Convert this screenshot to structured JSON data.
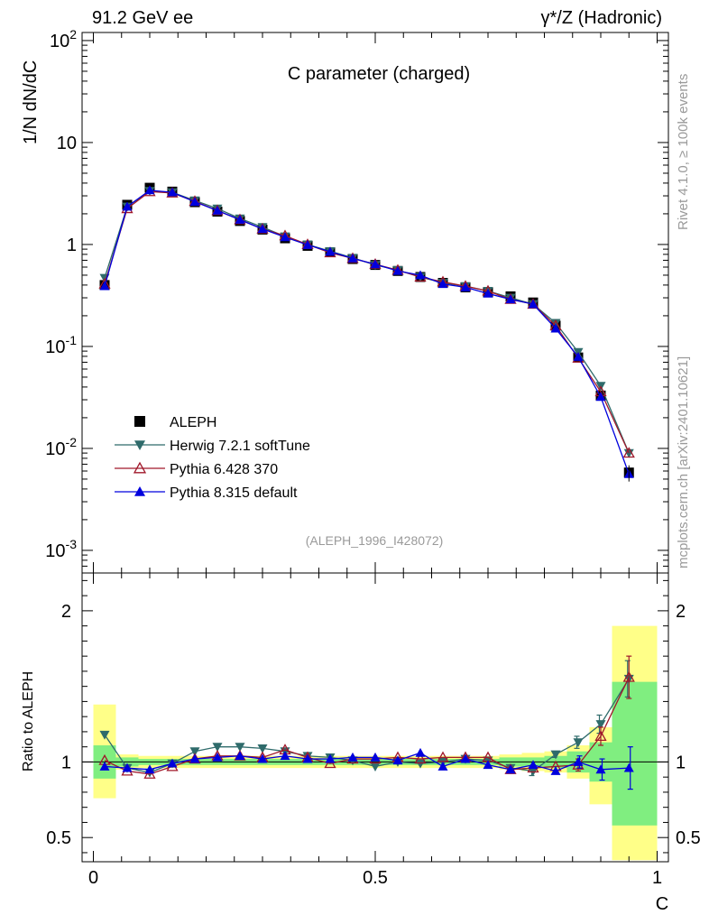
{
  "header": {
    "left": "91.2 GeV ee",
    "right": "γ*/Z (Hadronic)"
  },
  "side_labels": {
    "rivet": "Rivet 4.1.0, ≥ 100k events",
    "mcplots": "mcplots.cern.ch [arXiv:2401.10621]"
  },
  "colors": {
    "aleph": "#000000",
    "herwig": "#2f6b6b",
    "pythia6": "#a0182a",
    "pythia8": "#0000dd",
    "band_inner": "#80ee80",
    "band_outer": "#ffff88"
  },
  "chart_data": [
    {
      "type": "line",
      "title": "C parameter (charged)",
      "ylabel": "1/N  dN/dC",
      "xlabel": "C",
      "yscale": "log",
      "ylim": [
        0.0006,
        120
      ],
      "xlim": [
        -0.02,
        1.02
      ],
      "ytick_labels": [
        "10^-3",
        "10^-2",
        "10^-1",
        "1",
        "10",
        "10^2"
      ],
      "annotation": "(ALEPH_1996_I428072)",
      "legend_position": "left-middle",
      "x": [
        0.02,
        0.06,
        0.1,
        0.14,
        0.18,
        0.22,
        0.26,
        0.3,
        0.34,
        0.38,
        0.42,
        0.46,
        0.5,
        0.54,
        0.58,
        0.62,
        0.66,
        0.7,
        0.74,
        0.78,
        0.82,
        0.86,
        0.9,
        0.95
      ],
      "series": [
        {
          "name": "ALEPH",
          "marker": "square",
          "color_key": "aleph",
          "values": [
            0.4,
            2.45,
            3.6,
            3.3,
            2.6,
            2.1,
            1.7,
            1.4,
            1.15,
            0.97,
            0.84,
            0.72,
            0.63,
            0.55,
            0.48,
            0.42,
            0.38,
            0.34,
            0.31,
            0.27,
            0.16,
            0.078,
            0.033,
            0.0058
          ]
        },
        {
          "name": "Herwig 7.2.1 softTune",
          "marker": "triangle-down",
          "color_key": "herwig",
          "values": [
            0.47,
            2.35,
            3.35,
            3.25,
            2.7,
            2.25,
            1.8,
            1.48,
            1.2,
            1.0,
            0.86,
            0.74,
            0.63,
            0.56,
            0.48,
            0.42,
            0.39,
            0.35,
            0.3,
            0.26,
            0.17,
            0.088,
            0.041,
            0.009
          ]
        },
        {
          "name": "Pythia 6.428 370",
          "marker": "triangle-up-open",
          "color_key": "pythia6",
          "values": [
            0.41,
            2.25,
            3.3,
            3.2,
            2.65,
            2.15,
            1.75,
            1.42,
            1.22,
            1.0,
            0.83,
            0.73,
            0.64,
            0.56,
            0.48,
            0.43,
            0.39,
            0.35,
            0.29,
            0.26,
            0.16,
            0.077,
            0.036,
            0.009
          ]
        },
        {
          "name": "Pythia 8.315 default",
          "marker": "triangle-up",
          "color_key": "pythia8",
          "values": [
            0.39,
            2.35,
            3.4,
            3.25,
            2.62,
            2.15,
            1.75,
            1.42,
            1.18,
            0.99,
            0.85,
            0.73,
            0.64,
            0.55,
            0.5,
            0.41,
            0.38,
            0.33,
            0.29,
            0.26,
            0.15,
            0.079,
            0.032,
            0.0056
          ]
        }
      ]
    },
    {
      "type": "line",
      "title": "",
      "ylabel": "Ratio to ALEPH",
      "xlabel": "C",
      "ylim": [
        0.34,
        2.25
      ],
      "xlim": [
        -0.02,
        1.02
      ],
      "yticks": [
        0.5,
        1,
        2
      ],
      "ytick_labels": [
        "0.5",
        "1",
        "2"
      ],
      "xticks": [
        0,
        0.5,
        1
      ],
      "xtick_labels": [
        "0",
        "0.5",
        "1"
      ],
      "bands": {
        "edges": [
          0.0,
          0.04,
          0.08,
          0.12,
          0.16,
          0.2,
          0.24,
          0.28,
          0.32,
          0.36,
          0.4,
          0.44,
          0.48,
          0.52,
          0.56,
          0.6,
          0.64,
          0.68,
          0.72,
          0.76,
          0.8,
          0.84,
          0.88,
          0.92,
          1.0
        ],
        "inner": [
          [
            0.89,
            1.11
          ],
          [
            0.97,
            1.03
          ],
          [
            0.98,
            1.02
          ],
          [
            0.98,
            1.02
          ],
          [
            0.98,
            1.02
          ],
          [
            0.98,
            1.02
          ],
          [
            0.98,
            1.02
          ],
          [
            0.98,
            1.02
          ],
          [
            0.98,
            1.02
          ],
          [
            0.98,
            1.02
          ],
          [
            0.98,
            1.02
          ],
          [
            0.98,
            1.02
          ],
          [
            0.98,
            1.02
          ],
          [
            0.98,
            1.02
          ],
          [
            0.98,
            1.02
          ],
          [
            0.98,
            1.02
          ],
          [
            0.98,
            1.02
          ],
          [
            0.98,
            1.02
          ],
          [
            0.97,
            1.03
          ],
          [
            0.97,
            1.03
          ],
          [
            0.96,
            1.04
          ],
          [
            0.93,
            1.07
          ],
          [
            0.87,
            1.13
          ],
          [
            0.58,
            1.53
          ]
        ],
        "outer": [
          [
            0.76,
            1.38
          ],
          [
            0.95,
            1.05
          ],
          [
            0.96,
            1.04
          ],
          [
            0.96,
            1.04
          ],
          [
            0.96,
            1.04
          ],
          [
            0.96,
            1.04
          ],
          [
            0.96,
            1.04
          ],
          [
            0.96,
            1.04
          ],
          [
            0.96,
            1.04
          ],
          [
            0.96,
            1.04
          ],
          [
            0.96,
            1.04
          ],
          [
            0.96,
            1.04
          ],
          [
            0.96,
            1.04
          ],
          [
            0.96,
            1.04
          ],
          [
            0.96,
            1.04
          ],
          [
            0.96,
            1.04
          ],
          [
            0.96,
            1.04
          ],
          [
            0.96,
            1.04
          ],
          [
            0.95,
            1.05
          ],
          [
            0.94,
            1.06
          ],
          [
            0.93,
            1.07
          ],
          [
            0.89,
            1.11
          ],
          [
            0.72,
            1.23
          ],
          [
            0.35,
            1.9
          ]
        ]
      },
      "x": [
        0.02,
        0.06,
        0.1,
        0.14,
        0.18,
        0.22,
        0.26,
        0.3,
        0.34,
        0.38,
        0.42,
        0.46,
        0.5,
        0.54,
        0.58,
        0.62,
        0.66,
        0.7,
        0.74,
        0.78,
        0.82,
        0.86,
        0.9,
        0.95
      ],
      "series": [
        {
          "name": "Herwig 7.2.1 softTune",
          "marker": "triangle-down",
          "color_key": "herwig",
          "values": [
            1.18,
            0.96,
            0.93,
            0.99,
            1.07,
            1.1,
            1.1,
            1.09,
            1.07,
            1.04,
            1.03,
            1.01,
            0.97,
            1.0,
            0.99,
            1.0,
            1.02,
            1.01,
            0.96,
            0.94,
            1.05,
            1.13,
            1.25,
            1.55
          ],
          "errors": [
            0,
            0,
            0,
            0,
            0,
            0,
            0,
            0,
            0,
            0,
            0,
            0,
            0,
            0,
            0,
            0,
            0,
            0,
            0,
            0.03,
            0.02,
            0.04,
            0.06,
            0.12
          ]
        },
        {
          "name": "Pythia 6.428 370",
          "marker": "triangle-up-open",
          "color_key": "pythia6",
          "values": [
            1.01,
            0.94,
            0.92,
            0.97,
            1.02,
            1.04,
            1.04,
            1.03,
            1.08,
            1.03,
            0.99,
            1.02,
            1.02,
            1.03,
            1.02,
            1.03,
            1.03,
            1.03,
            0.95,
            0.96,
            0.97,
            0.98,
            1.17,
            1.56
          ],
          "errors": [
            0,
            0,
            0,
            0,
            0,
            0,
            0,
            0,
            0,
            0,
            0,
            0,
            0,
            0,
            0,
            0,
            0,
            0,
            0,
            0,
            0,
            0.04,
            0.06,
            0.14
          ]
        },
        {
          "name": "Pythia 8.315 default",
          "marker": "triangle-up",
          "color_key": "pythia8",
          "values": [
            0.97,
            0.96,
            0.95,
            0.99,
            1.02,
            1.03,
            1.04,
            1.02,
            1.04,
            1.02,
            1.02,
            1.03,
            1.03,
            1.01,
            1.06,
            0.97,
            1.02,
            0.98,
            0.95,
            0.98,
            0.94,
            1.0,
            0.95,
            0.96
          ],
          "errors": [
            0,
            0,
            0,
            0,
            0,
            0,
            0,
            0,
            0,
            0,
            0,
            0,
            0,
            0,
            0,
            0,
            0,
            0,
            0,
            0,
            0,
            0.04,
            0.07,
            0.14
          ]
        }
      ]
    }
  ]
}
